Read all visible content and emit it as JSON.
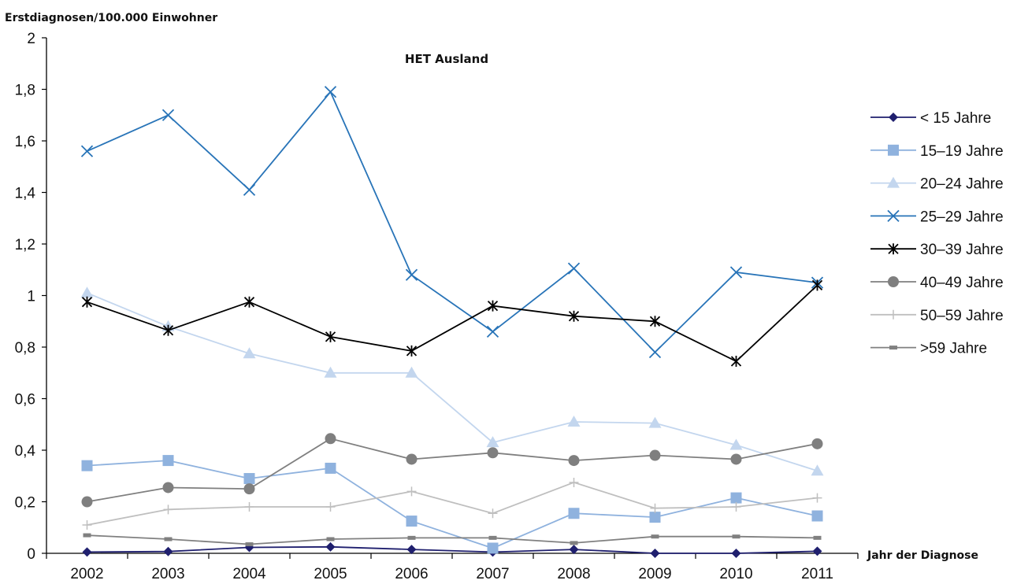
{
  "chart_data": {
    "type": "line",
    "title": "HET Ausland",
    "ylabel": "Erstdiagnosen/100.000 Einwohner",
    "xlabel": "Jahr der Diagnose",
    "x": [
      "2002",
      "2003",
      "2004",
      "2005",
      "2006",
      "2007",
      "2008",
      "2009",
      "2010",
      "2011"
    ],
    "ylim": [
      0,
      2
    ],
    "yticks": [
      "0",
      "0,2",
      "0,4",
      "0,6",
      "0,8",
      "1",
      "1,2",
      "1,4",
      "1,6",
      "1,8",
      "2"
    ],
    "grid": false,
    "legend_position": "right",
    "series": [
      {
        "name": "< 15 Jahre",
        "color": "#1f1f6e",
        "marker": "diamond",
        "values": [
          0.005,
          0.007,
          0.023,
          0.025,
          0.015,
          0.005,
          0.015,
          0.0,
          0.0,
          0.008
        ]
      },
      {
        "name": "15–19 Jahre",
        "color": "#8fb2de",
        "marker": "square",
        "values": [
          0.34,
          0.36,
          0.29,
          0.33,
          0.125,
          0.02,
          0.155,
          0.14,
          0.215,
          0.145
        ]
      },
      {
        "name": "20–24 Jahre",
        "color": "#c3d6ee",
        "marker": "triangle",
        "values": [
          1.01,
          0.88,
          0.775,
          0.7,
          0.7,
          0.43,
          0.51,
          0.505,
          0.42,
          0.32
        ]
      },
      {
        "name": "25–29 Jahre",
        "color": "#2874b8",
        "marker": "x",
        "values": [
          1.56,
          1.7,
          1.41,
          1.79,
          1.08,
          0.86,
          1.105,
          0.78,
          1.09,
          1.05
        ]
      },
      {
        "name": "30–39 Jahre",
        "color": "#000000",
        "marker": "star",
        "values": [
          0.975,
          0.865,
          0.975,
          0.84,
          0.785,
          0.96,
          0.92,
          0.9,
          0.745,
          1.04
        ]
      },
      {
        "name": "40–49 Jahre",
        "color": "#7f7f7f",
        "marker": "circle",
        "values": [
          0.2,
          0.255,
          0.25,
          0.445,
          0.365,
          0.39,
          0.36,
          0.38,
          0.365,
          0.425
        ]
      },
      {
        "name": "50–59 Jahre",
        "color": "#bfbfbf",
        "marker": "plus",
        "values": [
          0.11,
          0.17,
          0.18,
          0.18,
          0.24,
          0.155,
          0.275,
          0.175,
          0.18,
          0.215
        ]
      },
      {
        "name": ">59 Jahre",
        "color": "#808080",
        "marker": "dash",
        "values": [
          0.07,
          0.055,
          0.035,
          0.055,
          0.06,
          0.06,
          0.04,
          0.065,
          0.065,
          0.06
        ]
      }
    ]
  }
}
